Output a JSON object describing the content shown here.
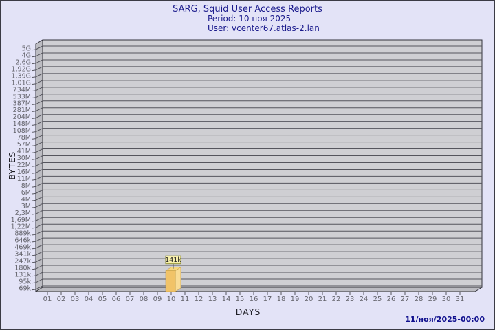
{
  "title": {
    "line1": "SARG, Squid User Access Reports",
    "line2": "Period: 10 ноя 2025",
    "line3": "User: vcenter67.atlas-2.lan"
  },
  "footer": {
    "timestamp": "11/ноя/2025-00:00"
  },
  "chart_data": {
    "type": "bar",
    "title": "SARG, Squid User Access Reports",
    "subtitle": "Period: 10 ноя 2025 — User: vcenter67.atlas-2.lan",
    "xlabel": "DAYS",
    "ylabel": "BYTES",
    "y_scale": "log",
    "ylim_labels": [
      "69k",
      "5G"
    ],
    "grid": true,
    "legend_position": "none",
    "y_ticks": [
      "5G",
      "4G",
      "2,6G",
      "1,92G",
      "1,39G",
      "1,01G",
      "734M",
      "533M",
      "387M",
      "281M",
      "204M",
      "148M",
      "108M",
      "78M",
      "57M",
      "41M",
      "30M",
      "22M",
      "16M",
      "11M",
      "8M",
      "6M",
      "4M",
      "3M",
      "2,3M",
      "1,69M",
      "1,22M",
      "889k",
      "646k",
      "469k",
      "341k",
      "247k",
      "180k",
      "131k",
      "95k",
      "69k"
    ],
    "x_ticks": [
      "01",
      "02",
      "03",
      "04",
      "05",
      "06",
      "07",
      "08",
      "09",
      "10",
      "11",
      "12",
      "13",
      "14",
      "15",
      "16",
      "17",
      "18",
      "19",
      "20",
      "21",
      "22",
      "23",
      "24",
      "25",
      "26",
      "27",
      "28",
      "29",
      "30",
      "31"
    ],
    "bars": [
      {
        "x": "10",
        "label": "141k",
        "value_bytes": 141000
      }
    ]
  },
  "colors": {
    "page_bg": "#e3e3f7",
    "back_wall": "#cfcfd3",
    "side_wall": "#bcbcc2",
    "gridline": "#55555d",
    "frame": "#33333b",
    "tick_label": "#63636b",
    "axis_title": "#1f1f26",
    "title_text": "#1a1a8c",
    "footer_text": "#10108e",
    "bar_front": "#f1c368",
    "bar_side": "#f9dc96",
    "bar_top": "#f7d77f",
    "bar_edge": "#b98f35",
    "value_box_bg": "#f8f0ac",
    "value_box_border": "#8e8e34",
    "value_text": "#1f1f1f"
  }
}
